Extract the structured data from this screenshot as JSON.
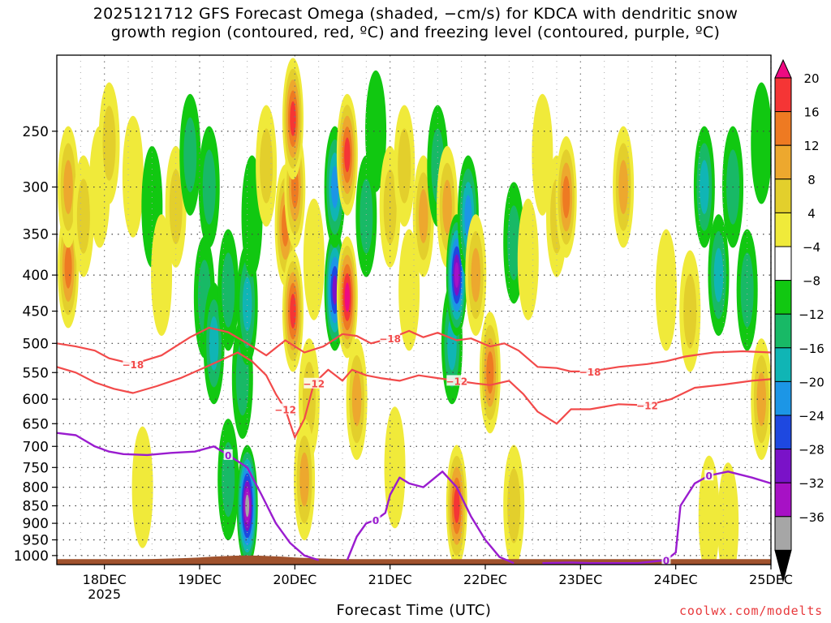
{
  "title": {
    "line1": "2025121712 GFS Forecast Omega (shaded, −cm/s) for KDCA with dendritic snow",
    "line2": "growth region (contoured, red, ºC) and freezing level (contoured, purple, ºC)"
  },
  "credit": "coolwx.com/modelts",
  "chart_data": {
    "type": "heatmap",
    "title": "2025121712 GFS Forecast Omega (shaded, −cm/s) for KDCA with dendritic snow growth region (contoured, red, ºC) and freezing level (contoured, purple, ºC)",
    "xlabel": "Forecast Time (UTC)",
    "ylabel": "",
    "x_ticks": [
      "18DEC",
      "19DEC",
      "20DEC",
      "21DEC",
      "22DEC",
      "23DEC",
      "24DEC",
      "25DEC"
    ],
    "x_tick_year": "2025",
    "x_range_days": [
      17.5,
      25.0
    ],
    "y_ticks": [
      250,
      300,
      350,
      400,
      450,
      500,
      550,
      600,
      650,
      700,
      750,
      800,
      850,
      900,
      950,
      1000
    ],
    "y_range_hPa": [
      195,
      1030
    ],
    "y_scale": "log-pressure (inverted)",
    "grid": true,
    "colorbar": {
      "labels": [
        "20",
        "16",
        "12",
        "8",
        "4",
        "−4",
        "−8",
        "−12",
        "−16",
        "−20",
        "−24",
        "−28",
        "−32",
        "−36"
      ],
      "colors": [
        "#ee0a82",
        "#f53535",
        "#ee7a22",
        "#eda82e",
        "#e3cf2c",
        "#f0ea3a",
        "#ffffff",
        "#11c811",
        "#18b966",
        "#10b5b5",
        "#1c96e6",
        "#1e48e0",
        "#7a12c8",
        "#a711c5",
        "#a6a6a6",
        "#000000"
      ]
    },
    "omega_cells": [
      {
        "t": 17.62,
        "p": 390,
        "v": 14
      },
      {
        "t": 17.62,
        "p": 300,
        "v": 8
      },
      {
        "t": 17.78,
        "p": 330,
        "v": 6
      },
      {
        "t": 17.95,
        "p": 300,
        "v": 5
      },
      {
        "t": 18.05,
        "p": 260,
        "v": 7
      },
      {
        "t": 18.3,
        "p": 290,
        "v": 5
      },
      {
        "t": 18.5,
        "p": 320,
        "v": -6
      },
      {
        "t": 18.6,
        "p": 400,
        "v": 5
      },
      {
        "t": 18.75,
        "p": 320,
        "v": 7
      },
      {
        "t": 18.9,
        "p": 270,
        "v": -8
      },
      {
        "t": 19.1,
        "p": 300,
        "v": -9
      },
      {
        "t": 19.05,
        "p": 430,
        "v": -10
      },
      {
        "t": 19.15,
        "p": 500,
        "v": -13
      },
      {
        "t": 19.3,
        "p": 420,
        "v": -10
      },
      {
        "t": 19.45,
        "p": 560,
        "v": -8
      },
      {
        "t": 19.5,
        "p": 440,
        "v": -12
      },
      {
        "t": 19.55,
        "p": 330,
        "v": -7
      },
      {
        "t": 19.7,
        "p": 280,
        "v": 6
      },
      {
        "t": 19.9,
        "p": 340,
        "v": 12
      },
      {
        "t": 20.0,
        "p": 300,
        "v": 15
      },
      {
        "t": 19.98,
        "p": 450,
        "v": 16
      },
      {
        "t": 19.98,
        "p": 240,
        "v": 19
      },
      {
        "t": 20.15,
        "p": 600,
        "v": 6
      },
      {
        "t": 20.2,
        "p": 380,
        "v": 4
      },
      {
        "t": 20.42,
        "p": 420,
        "v": -25
      },
      {
        "t": 20.42,
        "p": 300,
        "v": -18
      },
      {
        "t": 20.55,
        "p": 270,
        "v": 18
      },
      {
        "t": 20.55,
        "p": 430,
        "v": 20
      },
      {
        "t": 20.65,
        "p": 600,
        "v": 8
      },
      {
        "t": 20.75,
        "p": 330,
        "v": -9
      },
      {
        "t": 20.85,
        "p": 250,
        "v": -6
      },
      {
        "t": 21.0,
        "p": 320,
        "v": 7
      },
      {
        "t": 21.15,
        "p": 280,
        "v": 6
      },
      {
        "t": 21.2,
        "p": 420,
        "v": 5
      },
      {
        "t": 21.35,
        "p": 330,
        "v": 9
      },
      {
        "t": 21.5,
        "p": 280,
        "v": -8
      },
      {
        "t": 21.6,
        "p": 320,
        "v": 9
      },
      {
        "t": 21.65,
        "p": 500,
        "v": -12
      },
      {
        "t": 21.7,
        "p": 400,
        "v": -30
      },
      {
        "t": 21.82,
        "p": 330,
        "v": -16
      },
      {
        "t": 21.9,
        "p": 400,
        "v": 10
      },
      {
        "t": 22.05,
        "p": 550,
        "v": 12
      },
      {
        "t": 22.3,
        "p": 360,
        "v": -9
      },
      {
        "t": 22.45,
        "p": 380,
        "v": 5
      },
      {
        "t": 22.6,
        "p": 270,
        "v": 5
      },
      {
        "t": 22.75,
        "p": 330,
        "v": 6
      },
      {
        "t": 22.85,
        "p": 310,
        "v": 12
      },
      {
        "t": 23.45,
        "p": 300,
        "v": 8
      },
      {
        "t": 23.9,
        "p": 420,
        "v": 5
      },
      {
        "t": 24.15,
        "p": 450,
        "v": 6
      },
      {
        "t": 24.3,
        "p": 300,
        "v": -12
      },
      {
        "t": 24.45,
        "p": 400,
        "v": -14
      },
      {
        "t": 24.6,
        "p": 300,
        "v": -10
      },
      {
        "t": 24.75,
        "p": 420,
        "v": -10
      },
      {
        "t": 24.9,
        "p": 600,
        "v": 8
      },
      {
        "t": 24.9,
        "p": 260,
        "v": -6
      },
      {
        "t": 18.4,
        "p": 800,
        "v": 5
      },
      {
        "t": 19.3,
        "p": 780,
        "v": -10
      },
      {
        "t": 19.5,
        "p": 850,
        "v": -32
      },
      {
        "t": 20.1,
        "p": 780,
        "v": 10
      },
      {
        "t": 21.7,
        "p": 850,
        "v": 18
      },
      {
        "t": 21.05,
        "p": 750,
        "v": 5
      },
      {
        "t": 22.3,
        "p": 850,
        "v": 6
      },
      {
        "t": 24.35,
        "p": 880,
        "v": 5
      },
      {
        "t": 24.55,
        "p": 900,
        "v": 5
      }
    ],
    "red_contours": [
      {
        "label": "−18",
        "values": [
          [
            17.5,
            500
          ],
          [
            17.7,
            505
          ],
          [
            17.9,
            512
          ],
          [
            18.05,
            525
          ],
          [
            18.3,
            535
          ],
          [
            18.6,
            520
          ],
          [
            18.9,
            490
          ],
          [
            19.1,
            475
          ],
          [
            19.3,
            482
          ],
          [
            19.5,
            500
          ],
          [
            19.7,
            520
          ],
          [
            19.9,
            495
          ],
          [
            20.1,
            515
          ],
          [
            20.3,
            505
          ],
          [
            20.5,
            485
          ],
          [
            20.65,
            488
          ],
          [
            20.8,
            500
          ],
          [
            21.0,
            492
          ],
          [
            21.2,
            480
          ],
          [
            21.35,
            490
          ],
          [
            21.5,
            483
          ],
          [
            21.7,
            495
          ],
          [
            21.85,
            492
          ],
          [
            22.05,
            505
          ],
          [
            22.2,
            500
          ],
          [
            22.35,
            512
          ],
          [
            22.55,
            540
          ],
          [
            22.75,
            542
          ],
          [
            22.9,
            548
          ],
          [
            23.1,
            548
          ],
          [
            23.4,
            540
          ],
          [
            23.7,
            535
          ],
          [
            23.9,
            530
          ],
          [
            24.1,
            522
          ],
          [
            24.4,
            515
          ],
          [
            24.7,
            513
          ],
          [
            25.0,
            515
          ]
        ]
      },
      {
        "label": "−12",
        "values": [
          [
            17.5,
            540
          ],
          [
            17.7,
            550
          ],
          [
            17.9,
            568
          ],
          [
            18.1,
            580
          ],
          [
            18.3,
            588
          ],
          [
            18.55,
            575
          ],
          [
            18.8,
            560
          ],
          [
            19.0,
            545
          ],
          [
            19.2,
            530
          ],
          [
            19.4,
            515
          ],
          [
            19.55,
            530
          ],
          [
            19.7,
            555
          ],
          [
            19.8,
            590
          ],
          [
            19.9,
            620
          ],
          [
            20.0,
            680
          ],
          [
            20.1,
            640
          ],
          [
            20.2,
            570
          ],
          [
            20.35,
            545
          ],
          [
            20.5,
            565
          ],
          [
            20.6,
            545
          ],
          [
            20.75,
            555
          ],
          [
            20.9,
            560
          ],
          [
            21.1,
            565
          ],
          [
            21.3,
            555
          ],
          [
            21.5,
            560
          ],
          [
            21.7,
            565
          ],
          [
            21.9,
            570
          ],
          [
            22.05,
            573
          ],
          [
            22.25,
            565
          ],
          [
            22.4,
            590
          ],
          [
            22.55,
            625
          ],
          [
            22.75,
            650
          ],
          [
            22.9,
            620
          ],
          [
            23.1,
            620
          ],
          [
            23.4,
            610
          ],
          [
            23.7,
            612
          ],
          [
            23.95,
            600
          ],
          [
            24.2,
            578
          ],
          [
            24.5,
            572
          ],
          [
            24.8,
            565
          ],
          [
            25.0,
            562
          ]
        ]
      }
    ],
    "purple_contours": [
      {
        "label": "0",
        "values": [
          [
            17.5,
            670
          ],
          [
            17.7,
            675
          ],
          [
            17.9,
            700
          ],
          [
            18.05,
            712
          ],
          [
            18.2,
            718
          ],
          [
            18.45,
            720
          ],
          [
            18.7,
            715
          ],
          [
            18.95,
            712
          ],
          [
            19.15,
            700
          ],
          [
            19.3,
            720
          ],
          [
            19.5,
            750
          ],
          [
            19.65,
            820
          ],
          [
            19.8,
            900
          ],
          [
            19.95,
            960
          ],
          [
            20.1,
            1000
          ],
          [
            20.25,
            1015
          ]
        ]
      },
      {
        "label": "0",
        "values": [
          [
            20.55,
            1015
          ],
          [
            20.65,
            940
          ],
          [
            20.75,
            900
          ],
          [
            20.85,
            890
          ],
          [
            20.95,
            870
          ],
          [
            21.0,
            820
          ],
          [
            21.1,
            775
          ],
          [
            21.2,
            790
          ],
          [
            21.35,
            800
          ],
          [
            21.55,
            760
          ],
          [
            21.7,
            800
          ],
          [
            21.85,
            880
          ],
          [
            22.0,
            950
          ],
          [
            22.15,
            1005
          ],
          [
            22.3,
            1025
          ]
        ]
      },
      {
        "label": "0",
        "values": [
          [
            22.6,
            1025
          ],
          [
            22.9,
            1023
          ],
          [
            23.1,
            1025
          ],
          [
            23.6,
            1025
          ],
          [
            23.9,
            1015
          ],
          [
            24.0,
            990
          ],
          [
            24.05,
            850
          ],
          [
            24.2,
            790
          ],
          [
            24.35,
            770
          ],
          [
            24.55,
            760
          ],
          [
            24.8,
            775
          ],
          [
            25.0,
            790
          ]
        ]
      }
    ]
  }
}
